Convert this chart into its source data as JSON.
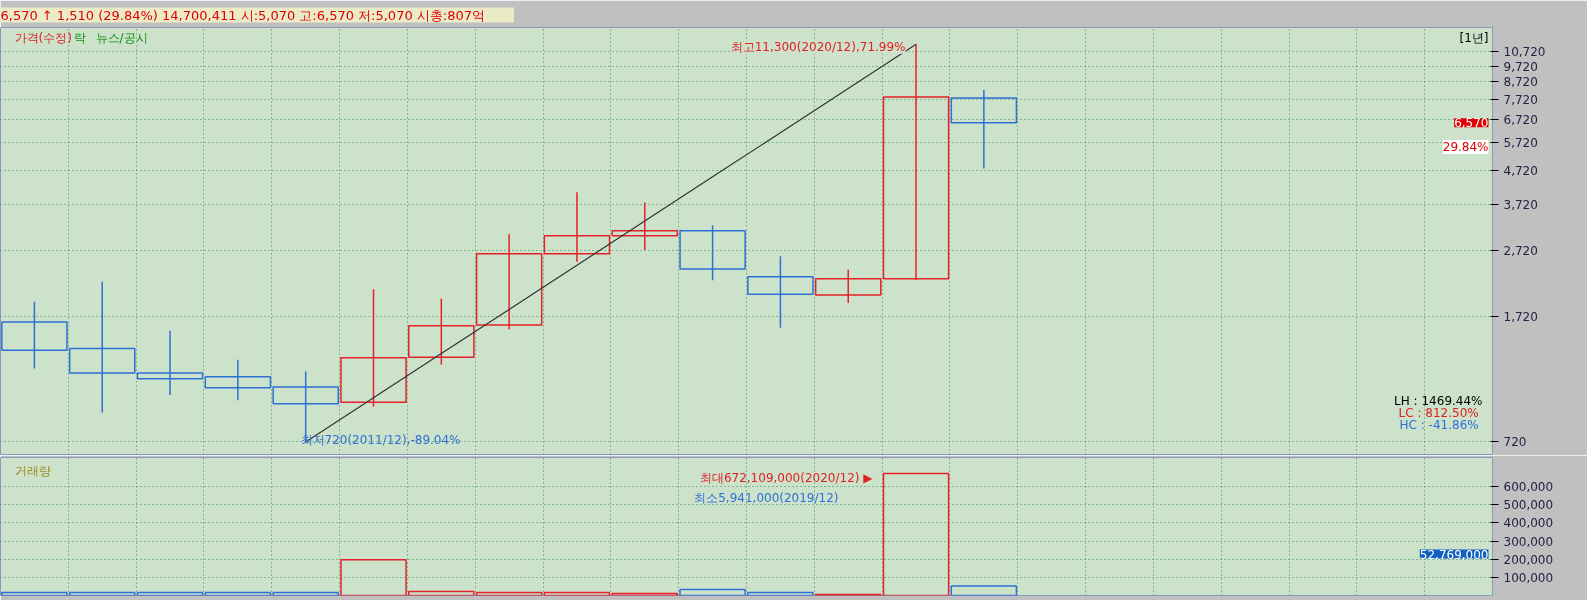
{
  "chart_data": [
    {
      "type": "candlestick",
      "title": "6,570 ↑ 1,510 (29.84%)   14,700,411   시:5,070  고:6,570  저:5,070  시총:807억",
      "categories": [
        null,
        null,
        null,
        null,
        null,
        null,
        null,
        null,
        null,
        null,
        null,
        null,
        null,
        null,
        null,
        null,
        null,
        null,
        null,
        null,
        null,
        null
      ],
      "ohlc": [
        [
          1652,
          1902,
          1197,
          1359
        ],
        [
          1374,
          2184,
          883,
          1160
        ],
        [
          1160,
          1555,
          996,
          1115
        ],
        [
          1131,
          1271,
          961,
          1047
        ],
        [
          1054,
          1172,
          720,
          938
        ],
        [
          948,
          2071,
          921,
          1290
        ],
        [
          1294,
          1943,
          1231,
          1611
        ],
        [
          1617,
          3034,
          1572,
          2652
        ],
        [
          2652,
          4055,
          2506,
          3002
        ],
        [
          3002,
          3777,
          2719,
          3109
        ],
        [
          3109,
          3222,
          2207,
          2385
        ],
        [
          2262,
          2606,
          1589,
          2003
        ],
        [
          1992,
          2373,
          1883,
          2231
        ],
        [
          2231,
          11300,
          2211,
          7855
        ],
        [
          7788,
          8241,
          4787,
          6570
        ],
        null,
        null,
        null,
        null,
        null,
        null,
        null
      ],
      "colors": [
        "#2f6fd6",
        "#2f6fd6",
        "#2f6fd6",
        "#2f6fd6",
        "#2f6fd6",
        "#e8202a",
        "#e8202a",
        "#e8202a",
        "#e8202a",
        "#e8202a",
        "#2f6fd6",
        "#2f6fd6",
        "#e8202a",
        "#e8202a",
        "#2f6fd6",
        null,
        null,
        null,
        null,
        null,
        null,
        null
      ],
      "series": [
        {
          "type": "line",
          "color": "#333333",
          "values": [
            null,
            null,
            null,
            null,
            720,
            978,
            1328,
            1803,
            2448,
            3324,
            4514,
            6130,
            8324,
            11300,
            null,
            null,
            null,
            null,
            null,
            null,
            null,
            null
          ]
        }
      ],
      "log": true,
      "ylim": [
        660,
        12700
      ],
      "yticks": [
        {
          "value": 720,
          "label": "720"
        },
        {
          "value": 1720,
          "label": "1,720"
        },
        {
          "value": 2720,
          "label": "2,720"
        },
        {
          "value": 3720,
          "label": "3,720"
        },
        {
          "value": 4720,
          "label": "4,720"
        },
        {
          "value": 5720,
          "label": "5,720"
        },
        {
          "value": 6720,
          "label": "6,720"
        },
        {
          "value": 7720,
          "label": "7,720"
        },
        {
          "value": 8720,
          "label": "8,720"
        },
        {
          "value": 9720,
          "label": "9,720"
        },
        {
          "value": 10720,
          "label": "10,720"
        }
      ],
      "grid": true,
      "tick_labels": "y",
      "annotations": [
        "가격(수정)",
        "락",
        "뉴스/공시",
        "[1년]",
        "최고11,300(2020/12),71.99%",
        "최저720(2011/12),-89.04%",
        "LH : 1469.44%",
        "LC :  812.50%",
        "HC :  -41.86%",
        "6,570",
        "29.84%"
      ]
    },
    {
      "type": "bar",
      "categories": [
        null,
        null,
        null,
        null,
        null,
        null,
        null,
        null,
        null,
        null,
        null,
        null,
        null,
        null,
        null,
        null,
        null,
        null,
        null,
        null,
        null,
        null
      ],
      "values": [
        16000,
        16000,
        16000,
        16000,
        16000,
        197000,
        22000,
        16000,
        16000,
        11000,
        33000,
        16000,
        5941,
        672109,
        52769,
        null,
        null,
        null,
        null,
        null,
        null,
        null
      ],
      "colors": [
        "#2f6fd6",
        "#2f6fd6",
        "#2f6fd6",
        "#2f6fd6",
        "#2f6fd6",
        "#e8202a",
        "#e8202a",
        "#e8202a",
        "#e8202a",
        "#e8202a",
        "#2f6fd6",
        "#2f6fd6",
        "#e8202a",
        "#e8202a",
        "#2f6fd6",
        null,
        null,
        null,
        null,
        null,
        null,
        null
      ],
      "ylim": [
        0,
        760000
      ],
      "yticks": [
        {
          "value": 100000,
          "label": "100,000"
        },
        {
          "value": 200000,
          "label": "200,000"
        },
        {
          "value": 300000,
          "label": "300,000"
        },
        {
          "value": 400000,
          "label": "400,000"
        },
        {
          "value": 500000,
          "label": "500,000"
        },
        {
          "value": 600000,
          "label": "600,000"
        }
      ],
      "grid": true,
      "tick_labels": "y",
      "annotations": [
        "거래량",
        "최대672,109,000(2020/12) ▶",
        "최소5,941,000(2019/12)",
        "52,769,000"
      ]
    }
  ]
}
